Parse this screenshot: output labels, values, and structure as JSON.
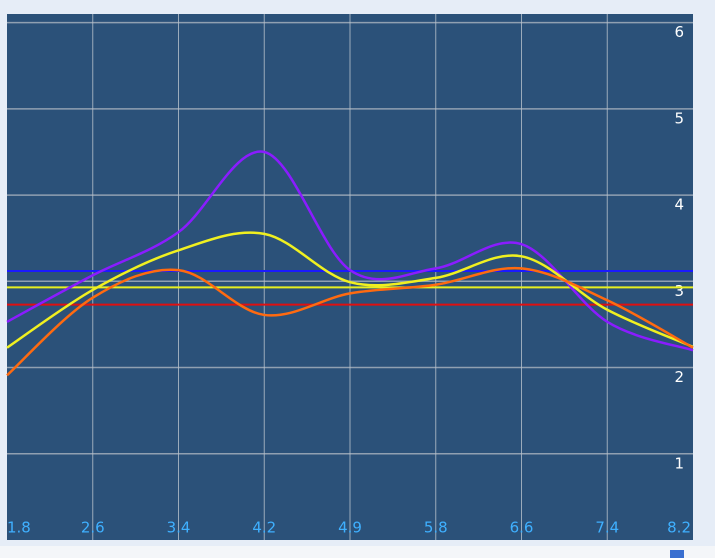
{
  "chart_data": {
    "type": "line",
    "categories": [
      "1.8",
      "2.6",
      "3.4",
      "4.2",
      "4.9",
      "5.8",
      "6.6",
      "7.4",
      "8.2"
    ],
    "series": [
      {
        "color": "#8a1cff",
        "values": [
          2.53,
          3.07,
          3.57,
          4.5,
          3.13,
          3.15,
          3.43,
          2.53,
          2.2
        ]
      },
      {
        "color": "#f0f020",
        "values": [
          2.23,
          2.9,
          3.36,
          3.55,
          2.99,
          3.04,
          3.29,
          2.67,
          2.24
        ]
      },
      {
        "color": "#ff6a10",
        "values": [
          1.91,
          2.81,
          3.13,
          2.61,
          2.86,
          2.96,
          3.15,
          2.78,
          2.23
        ]
      }
    ],
    "reference_lines": [
      {
        "value": 3.12,
        "color": "#1a1aff"
      },
      {
        "value": 2.93,
        "color": "#e8f020"
      },
      {
        "value": 2.73,
        "color": "#e01010"
      }
    ],
    "ylim": [
      0,
      6.1
    ],
    "yticks": [
      1,
      2,
      3,
      4,
      5,
      6
    ],
    "grid": true
  }
}
